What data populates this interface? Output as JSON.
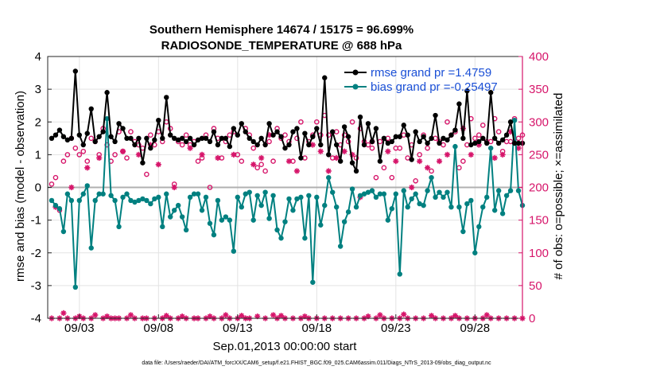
{
  "chart_data": {
    "type": "line",
    "title": "Southern Hemisphere 14674 / 15175 = 96.699%",
    "subtitle": "RADIOSONDE_TEMPERATURE @ 688 hPa",
    "xlabel": "Sep.01,2013 00:00:00 start",
    "ylabel_left": "rmse and bias (model - observation)",
    "ylabel_right": "# of obs: o=possible; ×=assimilated",
    "footnote": "data file: /Users/raeder/DAI/ATM_forcXX/CAM6_setup/f.e21.FHIST_BGC.f09_025.CAM6assim.011/Diags_NTrS_2013-09/obs_diag_output.nc",
    "xlim": [
      1.0,
      31.0
    ],
    "ylim_left": [
      -4,
      4
    ],
    "ylim_right": [
      0,
      400
    ],
    "x_ticks": [
      3,
      8,
      13,
      18,
      23,
      28
    ],
    "x_tick_labels": [
      "09/03",
      "09/08",
      "09/13",
      "09/18",
      "09/23",
      "09/28"
    ],
    "y_ticks_left": [
      -4,
      -3,
      -2,
      -1,
      0,
      1,
      2,
      3,
      4
    ],
    "y_tick_labels_left": [
      "-4",
      "-3",
      "-2",
      "-1",
      "0",
      "1",
      "2",
      "3",
      "4"
    ],
    "y_ticks_right": [
      0,
      50,
      100,
      150,
      200,
      250,
      300,
      350,
      400
    ],
    "y_tick_labels_right": [
      "0",
      "50",
      "100",
      "150",
      "200",
      "250",
      "300",
      "350",
      "400"
    ],
    "grid": true,
    "legend_position": "top-right",
    "colors": {
      "rmse": "#000000",
      "bias": "#008080",
      "obs": "#d6156a",
      "zero_line": "#b0b0b0",
      "grid": "#e3e3e3",
      "legend_text": "#1a4fd6"
    },
    "x": [
      1.25,
      1.5,
      1.75,
      2.0,
      2.25,
      2.5,
      2.75,
      3.0,
      3.25,
      3.5,
      3.75,
      4.0,
      4.25,
      4.5,
      4.75,
      5.0,
      5.25,
      5.5,
      5.75,
      6.0,
      6.25,
      6.5,
      6.75,
      7.0,
      7.25,
      7.5,
      7.75,
      8.0,
      8.25,
      8.5,
      8.75,
      9.0,
      9.25,
      9.5,
      9.75,
      10.0,
      10.25,
      10.5,
      10.75,
      11.0,
      11.25,
      11.5,
      11.75,
      12.0,
      12.25,
      12.5,
      12.75,
      13.0,
      13.25,
      13.5,
      13.75,
      14.0,
      14.25,
      14.5,
      14.75,
      15.0,
      15.25,
      15.5,
      15.75,
      16.0,
      16.25,
      16.5,
      16.75,
      17.0,
      17.25,
      17.5,
      17.75,
      18.0,
      18.25,
      18.5,
      18.75,
      19.0,
      19.25,
      19.5,
      19.75,
      20.0,
      20.25,
      20.5,
      20.75,
      21.0,
      21.25,
      21.5,
      21.75,
      22.0,
      22.25,
      22.5,
      22.75,
      23.0,
      23.25,
      23.5,
      23.75,
      24.0,
      24.25,
      24.5,
      24.75,
      25.0,
      25.25,
      25.5,
      25.75,
      26.0,
      26.25,
      26.5,
      26.75,
      27.0,
      27.25,
      27.5,
      27.75,
      28.0,
      28.25,
      28.5,
      28.75,
      29.0,
      29.25,
      29.5,
      29.75,
      30.0,
      30.25,
      30.5,
      30.75,
      31.0
    ],
    "series": [
      {
        "name": "rmse grand pr =1.4759",
        "values": [
          1.5,
          1.6,
          1.75,
          1.55,
          1.45,
          1.5,
          3.55,
          1.6,
          1.3,
          1.65,
          2.4,
          1.4,
          1.55,
          1.7,
          2.9,
          1.55,
          1.4,
          1.95,
          1.8,
          1.5,
          1.5,
          1.3,
          1.5,
          0.75,
          1.5,
          1.2,
          1.45,
          2.05,
          1.5,
          2.75,
          1.6,
          1.5,
          1.45,
          1.5,
          1.4,
          1.5,
          1.3,
          1.45,
          1.5,
          1.5,
          1.4,
          1.7,
          1.3,
          1.5,
          1.5,
          1.25,
          1.8,
          1.6,
          1.95,
          1.7,
          1.5,
          1.4,
          1.3,
          1.5,
          1.3,
          1.95,
          1.6,
          1.7,
          1.55,
          1.2,
          1.3,
          1.7,
          1.8,
          0.9,
          1.65,
          1.3,
          1.55,
          1.8,
          1.3,
          3.35,
          1.0,
          1.7,
          1.3,
          0.8,
          1.85,
          1.55,
          0.75,
          0.5,
          2.15,
          1.3,
          1.95,
          1.4,
          1.8,
          0.8,
          1.5,
          1.35,
          1.4,
          1.55,
          1.55,
          1.9,
          1.6,
          0.85,
          1.7,
          1.4,
          1.55,
          1.35,
          1.5,
          2.2,
          1.35,
          1.5,
          1.45,
          1.6,
          1.75,
          2.55,
          1.5,
          2.95,
          1.3,
          1.35,
          1.4,
          1.5,
          1.35,
          2.9,
          1.5,
          1.35,
          1.45,
          1.6,
          2.0,
          1.35,
          1.35,
          1.35
        ]
      },
      {
        "name": "bias grand pr =-0.25497",
        "values": [
          -0.4,
          -0.55,
          -0.65,
          -1.35,
          -0.2,
          -0.4,
          -3.05,
          -0.4,
          -0.2,
          0.05,
          -1.85,
          -0.4,
          -0.2,
          -0.2,
          2.1,
          -0.25,
          -0.4,
          -1.2,
          -0.3,
          -0.2,
          -0.4,
          -0.45,
          -0.4,
          -0.35,
          -0.4,
          -0.5,
          -0.35,
          -0.3,
          -1.2,
          -0.2,
          -0.9,
          -0.7,
          -0.55,
          -0.9,
          -1.3,
          -0.3,
          -0.2,
          -0.2,
          -0.7,
          -0.3,
          -1.1,
          -1.45,
          -0.4,
          -1.0,
          -0.9,
          -1.0,
          -1.95,
          -0.3,
          -0.6,
          -0.2,
          -0.15,
          -1.0,
          -0.25,
          -0.55,
          -0.15,
          -0.95,
          -0.25,
          -1.3,
          -1.55,
          -1.05,
          -0.35,
          -0.7,
          -0.35,
          -0.3,
          -1.55,
          -0.25,
          -2.9,
          -0.3,
          -1.15,
          -0.55,
          0.3,
          -0.15,
          -0.6,
          -1.8,
          -1.05,
          -0.75,
          -0.05,
          -0.6,
          -0.25,
          -0.2,
          -0.15,
          -0.1,
          -0.3,
          -0.2,
          -0.2,
          -1.0,
          -0.65,
          -0.2,
          -2.65,
          -0.1,
          -0.6,
          -0.35,
          -0.2,
          -0.5,
          -0.55,
          -0.1,
          0.3,
          -0.3,
          -0.15,
          -0.3,
          -0.15,
          -0.6,
          1.25,
          -0.6,
          -1.35,
          -0.5,
          -0.4,
          -2.0,
          -1.2,
          -0.6,
          -0.3,
          1.2,
          -0.7,
          -0.1,
          -0.8,
          -0.25,
          -0.1,
          2.05,
          -0.1,
          -0.55
        ]
      }
    ],
    "obs_possible": [
      205,
      215,
      165,
      240,
      250,
      275,
      260,
      250,
      255,
      240,
      275,
      270,
      250,
      290,
      265,
      240,
      250,
      285,
      255,
      245,
      285,
      270,
      265,
      260,
      220,
      280,
      265,
      285,
      270,
      300,
      290,
      205,
      270,
      265,
      280,
      265,
      270,
      240,
      245,
      280,
      200,
      290,
      275,
      245,
      270,
      280,
      285,
      250,
      240,
      290,
      280,
      260,
      230,
      235,
      225,
      270,
      240,
      290,
      275,
      280,
      270,
      240,
      275,
      300,
      245,
      270,
      280,
      300,
      280,
      310,
      280,
      245,
      285,
      265,
      280,
      270,
      300,
      245,
      290,
      270,
      265,
      260,
      215,
      270,
      230,
      275,
      215,
      260,
      260,
      280,
      245,
      265,
      210,
      250,
      280,
      260,
      225,
      275,
      270,
      265,
      300,
      280,
      285,
      230,
      240,
      265,
      305,
      275,
      280,
      295,
      270,
      270,
      305,
      285,
      255,
      270,
      270,
      305,
      275,
      280
    ],
    "obs_assimilated": [
      0,
      170,
      0,
      8,
      0,
      200,
      0,
      3,
      0,
      230,
      0,
      5,
      245,
      0,
      3,
      0,
      0,
      0,
      255,
      0,
      5,
      0,
      250,
      0,
      0,
      265,
      0,
      235,
      0,
      4,
      0,
      200,
      0,
      3,
      0,
      260,
      0,
      0,
      250,
      0,
      3,
      0,
      245,
      0,
      5,
      0,
      250,
      0,
      4,
      0,
      0,
      235,
      3,
      245,
      0,
      280,
      5,
      0,
      4,
      0,
      240,
      0,
      225,
      0,
      3,
      0,
      265,
      0,
      255,
      0,
      225,
      0,
      245,
      0,
      255,
      0,
      250,
      0,
      185,
      0,
      3,
      270,
      0,
      5,
      0,
      255,
      0,
      240,
      0,
      6,
      0,
      200,
      0,
      240,
      0,
      230,
      4,
      0,
      240,
      0,
      250,
      0,
      4,
      0,
      290,
      0,
      250,
      0,
      265,
      0,
      5,
      0,
      245,
      0,
      250,
      0,
      285,
      0,
      260,
      0
    ]
  }
}
